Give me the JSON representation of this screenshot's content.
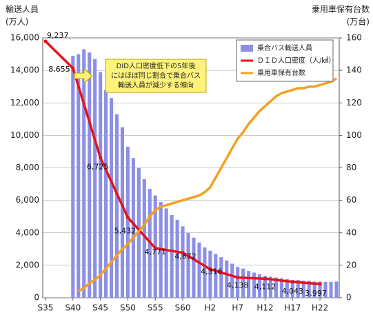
{
  "chart_data": {
    "type": "combo",
    "y_title": [
      "輸送人員",
      "(万人)"
    ],
    "y2_title": [
      "乗用車保有台数",
      "(万台)"
    ],
    "annotation": [
      "DID人口密度低下の5年後",
      "にはほぼ同じ割合で乗合バス",
      "輸送人員が減少する傾向"
    ],
    "xlim": [
      1959.5,
      2013.5
    ],
    "xticks": [
      {
        "value": 1960,
        "label": "S35"
      },
      {
        "value": 1965,
        "label": "S40"
      },
      {
        "value": 1970,
        "label": "S45"
      },
      {
        "value": 1975,
        "label": "S50"
      },
      {
        "value": 1980,
        "label": "S55"
      },
      {
        "value": 1985,
        "label": "S60"
      },
      {
        "value": 1990,
        "label": "H2"
      },
      {
        "value": 1995,
        "label": "H7"
      },
      {
        "value": 2000,
        "label": "H12"
      },
      {
        "value": 2005,
        "label": "H17"
      },
      {
        "value": 2010,
        "label": "H22"
      }
    ],
    "ylim": [
      0,
      16000
    ],
    "yticks": [
      0,
      {
        "value": 2000,
        "label": "2,000"
      },
      {
        "value": 4000,
        "label": "4,000"
      },
      {
        "value": 6000,
        "label": "6,000"
      },
      {
        "value": 8000,
        "label": "8,000"
      },
      {
        "value": 10000,
        "label": "10,000"
      },
      {
        "value": 12000,
        "label": "12,000"
      },
      {
        "value": 14000,
        "label": "14,000"
      },
      {
        "value": 16000,
        "label": "16,000"
      }
    ],
    "y2lim": [
      0,
      160
    ],
    "y2ticks": [
      0,
      20,
      40,
      60,
      80,
      100,
      120,
      140,
      160
    ],
    "y3lim": [
      3700,
      9310
    ],
    "grid": true,
    "legend": "top-right",
    "series": [
      {
        "name": "乗合バス輸送人員",
        "type": "bar",
        "color": "#8c8fe6",
        "x": [
          1965,
          1966,
          1967,
          1968,
          1969,
          1970,
          1971,
          1972,
          1973,
          1974,
          1975,
          1976,
          1977,
          1978,
          1979,
          1980,
          1981,
          1982,
          1983,
          1984,
          1985,
          1986,
          1987,
          1988,
          1989,
          1990,
          1991,
          1992,
          1993,
          1994,
          1995,
          1996,
          1997,
          1998,
          1999,
          2000,
          2001,
          2002,
          2003,
          2004,
          2005,
          2006,
          2007,
          2008,
          2009,
          2010,
          2011,
          2012,
          2013
        ],
        "values": [
          14900,
          15000,
          15300,
          15100,
          14700,
          13900,
          12800,
          12300,
          11300,
          10500,
          9300,
          8600,
          8000,
          7300,
          6700,
          6300,
          5900,
          5500,
          5100,
          4800,
          4400,
          4000,
          3700,
          3400,
          3100,
          2900,
          2700,
          2500,
          2300,
          2100,
          1900,
          1800,
          1650,
          1550,
          1450,
          1350,
          1300,
          1250,
          1200,
          1150,
          1100,
          1100,
          1050,
          1050,
          1000,
          1000,
          980,
          980,
          1000
        ]
      },
      {
        "name": "ＤＩＤ人口密度（人/㎢）",
        "type": "line",
        "axis": "y3",
        "color": "#e8101c",
        "x": [
          1960,
          1965,
          1970,
          1975,
          1980,
          1985,
          1990,
          1995,
          2000,
          2005,
          2010
        ],
        "values": [
          9237,
          8655,
          6725,
          5432,
          4771,
          4672,
          4316,
          4138,
          4112,
          4043,
          3997
        ],
        "value_labels": [
          "9,237",
          "8,655",
          "6,725",
          "5,432",
          "4,771",
          "4,672",
          "4,316",
          "4,138",
          "4,112",
          "4,043",
          "3,997"
        ]
      },
      {
        "name": "乗用車保有台数",
        "type": "line",
        "axis": "y2",
        "color": "#f5a020",
        "x": [
          1966,
          1967,
          1968,
          1969,
          1970,
          1971,
          1972,
          1973,
          1974,
          1975,
          1976,
          1977,
          1978,
          1979,
          1980,
          1981,
          1982,
          1983,
          1984,
          1985,
          1986,
          1987,
          1988,
          1989,
          1990,
          1991,
          1992,
          1993,
          1994,
          1995,
          1996,
          1997,
          1998,
          1999,
          2000,
          2001,
          2002,
          2003,
          2004,
          2005,
          2006,
          2007,
          2008,
          2009,
          2010,
          2011,
          2012,
          2013
        ],
        "values": [
          4,
          6,
          9,
          11,
          14,
          18,
          22,
          26,
          30,
          33,
          37,
          41,
          45,
          50,
          54,
          56,
          57,
          58,
          59,
          60,
          61,
          62,
          63,
          65,
          68,
          74,
          80,
          86,
          92,
          98,
          102,
          107,
          111,
          115,
          118,
          121,
          124,
          126,
          127,
          128,
          129,
          129,
          130,
          130,
          131,
          132,
          133,
          135
        ]
      }
    ]
  }
}
